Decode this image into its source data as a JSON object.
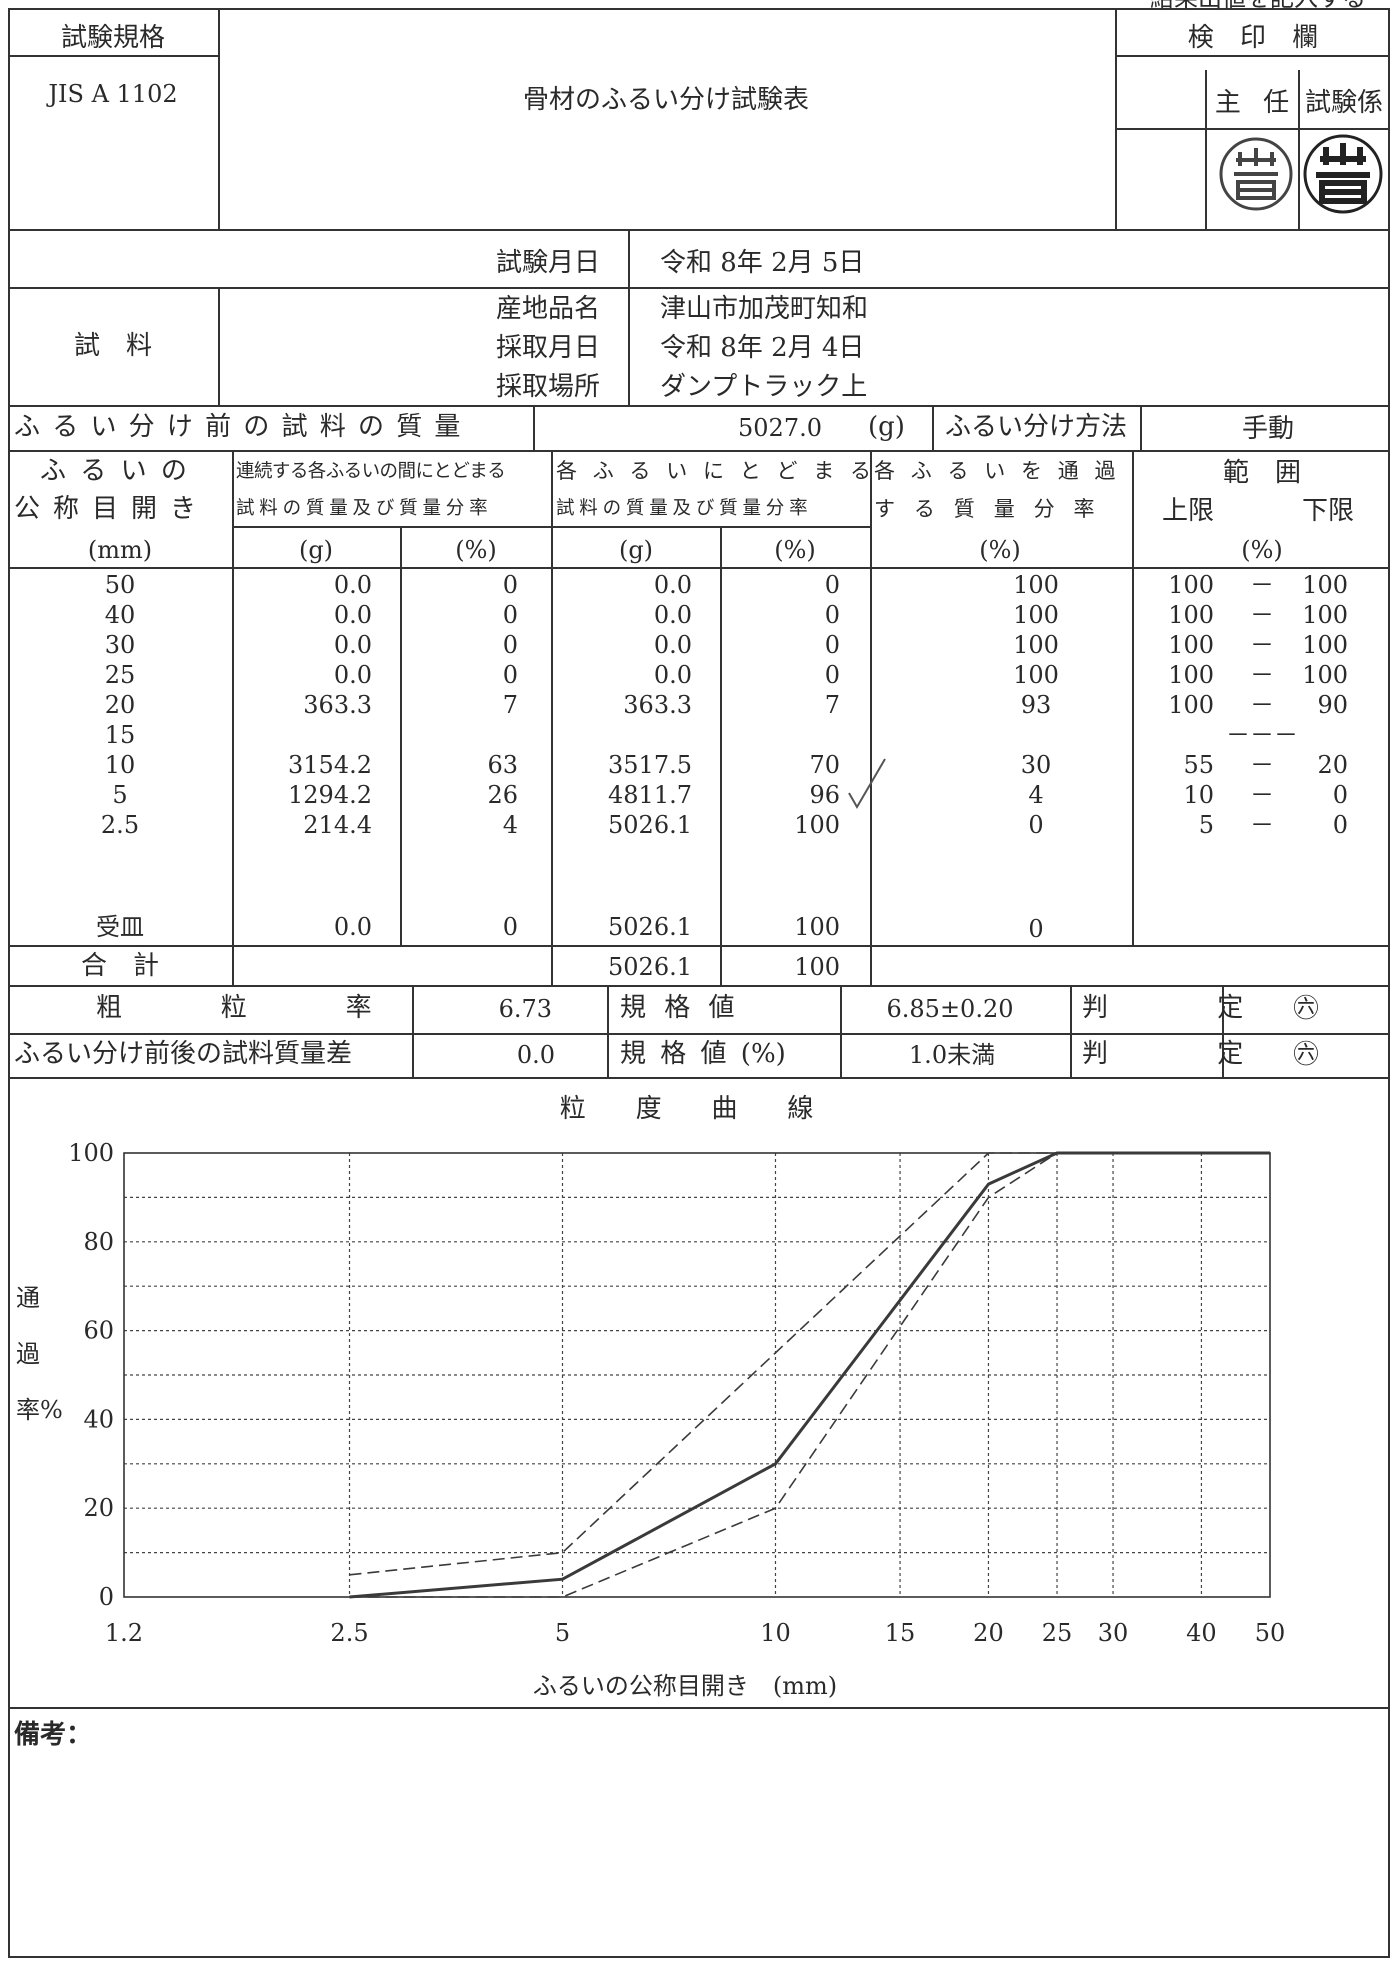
{
  "corner_note": "結果出値を記入する",
  "header": {
    "standard_label": "試験規格",
    "standard_value": "JIS A 1102",
    "title": "骨材のふるい分け試験表",
    "stamp_label": "検 印 欄",
    "chief_label": "主 任",
    "tester_label": "試験係"
  },
  "info": {
    "test_date_label": "試験月日",
    "test_date": "令和 8年 2月 5日",
    "sample_label": "試　料",
    "origin_label": "産地品名",
    "origin": "津山市加茂町知和",
    "sampling_date_label": "採取月日",
    "sampling_date": "令和 8年 2月 4日",
    "sampling_place_label": "採取場所",
    "sampling_place": "ダンプトラック上",
    "mass_before_label": "ふるい分け前の試料の質量",
    "mass_before": "5027.0",
    "mass_unit": "(g)",
    "method_label": "ふるい分け方法",
    "method": "手動"
  },
  "table": {
    "col1_l1": "ふるいの",
    "col1_l2": "公称目開き",
    "col1_unit": "(mm)",
    "col2_l1": "連続する各ふるいの間にとどまる",
    "col2_l2": "試料の質量及び質量分率",
    "col3_l1": "各ふるいにとどまる",
    "col3_l2": "試料の質量及び質量分率",
    "col4_l1": "各ふるいを通過",
    "col4_l2": "する質量分率",
    "col5_l1": "範　囲",
    "col5_upper": "上限",
    "col5_lower": "下限",
    "unit_g": "(g)",
    "unit_pct": "(%)",
    "rows": [
      {
        "sieve": "50",
        "mass": "0.0",
        "pct": "0",
        "cum_mass": "0.0",
        "cum_pct": "0",
        "pass": "100",
        "upper": "100",
        "dash": "－",
        "lower": "100"
      },
      {
        "sieve": "40",
        "mass": "0.0",
        "pct": "0",
        "cum_mass": "0.0",
        "cum_pct": "0",
        "pass": "100",
        "upper": "100",
        "dash": "－",
        "lower": "100"
      },
      {
        "sieve": "30",
        "mass": "0.0",
        "pct": "0",
        "cum_mass": "0.0",
        "cum_pct": "0",
        "pass": "100",
        "upper": "100",
        "dash": "－",
        "lower": "100"
      },
      {
        "sieve": "25",
        "mass": "0.0",
        "pct": "0",
        "cum_mass": "0.0",
        "cum_pct": "0",
        "pass": "100",
        "upper": "100",
        "dash": "－",
        "lower": "100"
      },
      {
        "sieve": "20",
        "mass": "363.3",
        "pct": "7",
        "cum_mass": "363.3",
        "cum_pct": "7",
        "pass": "93",
        "upper": "100",
        "dash": "－",
        "lower": "90"
      },
      {
        "sieve": "15",
        "mass": "",
        "pct": "",
        "cum_mass": "",
        "cum_pct": "",
        "pass": "",
        "upper": "",
        "dash": "－－－",
        "lower": ""
      },
      {
        "sieve": "10",
        "mass": "3154.2",
        "pct": "63",
        "cum_mass": "3517.5",
        "cum_pct": "70",
        "pass": "30",
        "upper": "55",
        "dash": "－",
        "lower": "20"
      },
      {
        "sieve": "5",
        "mass": "1294.2",
        "pct": "26",
        "cum_mass": "4811.7",
        "cum_pct": "96",
        "pass": "4",
        "upper": "10",
        "dash": "－",
        "lower": "0"
      },
      {
        "sieve": "2.5",
        "mass": "214.4",
        "pct": "4",
        "cum_mass": "5026.1",
        "cum_pct": "100",
        "pass": "0",
        "upper": "5",
        "dash": "－",
        "lower": "0"
      }
    ],
    "pan": {
      "sieve": "受皿",
      "mass": "0.0",
      "pct": "0",
      "cum_mass": "5026.1",
      "cum_pct": "100",
      "pass": "0"
    },
    "total": {
      "label": "合　計",
      "cum_mass": "5026.1",
      "cum_pct": "100"
    }
  },
  "results": {
    "fm_label": "粗　粒　率",
    "fm_value": "6.73",
    "spec_label": "規 格 値",
    "spec_value": "6.85±0.20",
    "judge_label": "判　定",
    "judge_value": "㊅",
    "diff_label": "ふるい分け前後の試料質量差",
    "diff_value": "0.0",
    "spec2_label": "規 格 値 (%)",
    "spec2_value": "1.0未満",
    "judge2_label": "判　定",
    "judge2_value": "㊅"
  },
  "chart_title": "粒 度 曲 線",
  "chart_data": {
    "type": "line",
    "x_scale": "log",
    "xlabel": "ふるいの公称目開き　(mm)",
    "ylabel": "通過率%",
    "x_ticks": [
      "1.2",
      "2.5",
      "5",
      "10",
      "15",
      "20",
      "25",
      "30",
      "40",
      "50"
    ],
    "y_ticks": [
      "0",
      "20",
      "40",
      "60",
      "80",
      "100"
    ],
    "ylim": [
      0,
      100
    ],
    "series": [
      {
        "style": "solid",
        "x": [
          2.5,
          5,
          10,
          20,
          25,
          50
        ],
        "y": [
          0,
          4,
          30,
          93,
          100,
          100
        ]
      },
      {
        "style": "dashed",
        "x": [
          2.5,
          5,
          10,
          20,
          25,
          50
        ],
        "y": [
          5,
          10,
          55,
          100,
          100,
          100
        ]
      },
      {
        "style": "dashed",
        "x": [
          2.5,
          5,
          10,
          20,
          25,
          50
        ],
        "y": [
          0,
          0,
          20,
          90,
          100,
          100
        ]
      }
    ]
  },
  "remarks_label": "備考："
}
